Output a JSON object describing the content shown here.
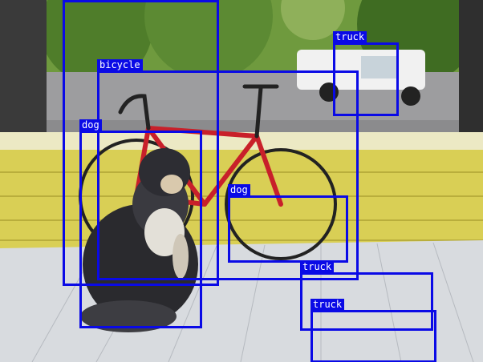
{
  "image": {
    "description_hidden": false,
    "box_color": "#0a0ae6",
    "label_text_color": "#ffffff"
  },
  "detections": [
    {
      "label": "bicycle"
    },
    {
      "label": "truck"
    },
    {
      "label": "dog"
    },
    {
      "label": "dog"
    },
    {
      "label": "truck"
    },
    {
      "label": "truck"
    }
  ]
}
